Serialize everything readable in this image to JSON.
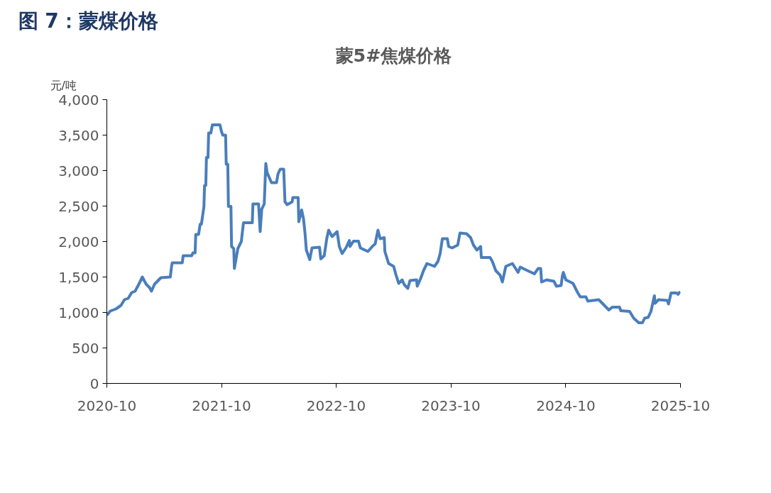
{
  "chart_data": {
    "type": "line",
    "title": "图 7：蒙煤价格",
    "subtitle": "蒙5#焦煤价格",
    "ylabel": "元/吨",
    "xlim": [
      "2020-10-01",
      "2025-10-01"
    ],
    "xticks": [
      "2020-10",
      "2021-10",
      "2022-10",
      "2023-10",
      "2024-10",
      "2025-10"
    ],
    "ylim": [
      0,
      4000
    ],
    "yticks": [
      0,
      500,
      {
        "value": 1000,
        "label": "1,000"
      },
      {
        "value": 1500,
        "label": "1,500"
      },
      {
        "value": 2000,
        "label": "2,000"
      },
      {
        "value": 2500,
        "label": "2,500"
      },
      {
        "value": 3000,
        "label": "3,000"
      },
      {
        "value": 3500,
        "label": "3,500"
      },
      {
        "value": 4000,
        "label": "4,000"
      }
    ],
    "grid": false,
    "marker": "none",
    "line_style": "solid",
    "series": [
      {
        "color": "#4a7ebb",
        "x": [
          "2020-10-01",
          "2020-10-12",
          "2020-10-30",
          "2020-11-15",
          "2020-11-26",
          "2020-12-08",
          "2020-12-19",
          "2020-12-30",
          "2021-01-11",
          "2021-01-22",
          "2021-02-03",
          "2021-02-14",
          "2021-02-20",
          "2021-03-02",
          "2021-03-22",
          "2021-04-21",
          "2021-04-25",
          "2021-04-27",
          "2021-05-29",
          "2021-06-01",
          "2021-06-28",
          "2021-07-02",
          "2021-07-09",
          "2021-07-11",
          "2021-07-20",
          "2021-07-25",
          "2021-07-29",
          "2021-08-06",
          "2021-08-08",
          "2021-08-12",
          "2021-08-14",
          "2021-08-19",
          "2021-08-21",
          "2021-08-28",
          "2021-09-02",
          "2021-09-26",
          "2021-10-01",
          "2021-10-05",
          "2021-10-14",
          "2021-10-16",
          "2021-10-21",
          "2021-10-23",
          "2021-10-31",
          "2021-11-02",
          "2021-11-09",
          "2021-11-11",
          "2021-11-15",
          "2021-11-22",
          "2021-12-03",
          "2021-12-10",
          "2022-01-07",
          "2022-01-09",
          "2022-01-27",
          "2022-02-01",
          "2022-02-06",
          "2022-02-14",
          "2022-02-19",
          "2022-02-23",
          "2022-03-09",
          "2022-03-25",
          "2022-03-30",
          "2022-04-06",
          "2022-04-17",
          "2022-04-21",
          "2022-04-28",
          "2022-05-14",
          "2022-05-16",
          "2022-06-02",
          "2022-06-04",
          "2022-06-13",
          "2022-06-19",
          "2022-06-24",
          "2022-06-28",
          "2022-07-09",
          "2022-07-16",
          "2022-08-09",
          "2022-08-13",
          "2022-08-24",
          "2022-09-01",
          "2022-09-07",
          "2022-09-18",
          "2022-10-04",
          "2022-10-11",
          "2022-10-20",
          "2022-11-01",
          "2022-11-12",
          "2022-11-14",
          "2022-11-25",
          "2022-12-11",
          "2022-12-17",
          "2023-01-10",
          "2023-01-26",
          "2023-02-02",
          "2023-02-11",
          "2023-02-18",
          "2023-03-03",
          "2023-03-05",
          "2023-03-17",
          "2023-04-02",
          "2023-04-09",
          "2023-04-18",
          "2023-04-29",
          "2023-05-06",
          "2023-05-17",
          "2023-05-24",
          "2023-06-14",
          "2023-06-16",
          "2023-06-27",
          "2023-07-06",
          "2023-07-17",
          "2023-08-10",
          "2023-08-21",
          "2023-08-28",
          "2023-09-04",
          "2023-09-20",
          "2023-09-24",
          "2023-10-05",
          "2023-10-23",
          "2023-10-30",
          "2023-11-20",
          "2023-12-03",
          "2023-12-12",
          "2023-12-23",
          "2024-01-04",
          "2024-01-06",
          "2024-02-03",
          "2024-02-10",
          "2024-02-21",
          "2024-03-06",
          "2024-03-13",
          "2024-03-24",
          "2024-04-14",
          "2024-05-02",
          "2024-05-09",
          "2024-06-01",
          "2024-06-23",
          "2024-07-05",
          "2024-07-13",
          "2024-07-16",
          "2024-08-01",
          "2024-08-24",
          "2024-09-01",
          "2024-09-16",
          "2024-09-20",
          "2024-09-23",
          "2024-10-01",
          "2024-10-24",
          "2024-11-07",
          "2024-11-16",
          "2024-12-04",
          "2024-12-10",
          "2025-01-14",
          "2025-01-25",
          "2025-02-15",
          "2025-02-26",
          "2025-03-21",
          "2025-03-25",
          "2025-04-22",
          "2025-05-05",
          "2025-05-21",
          "2025-06-02",
          "2025-06-09",
          "2025-06-20",
          "2025-06-29",
          "2025-07-10",
          "2025-07-12",
          "2025-07-23",
          "2025-08-20",
          "2025-08-24",
          "2025-09-01",
          "2025-09-19",
          "2025-09-23",
          "2025-09-30"
        ],
        "values": [
          960,
          1020,
          1050,
          1100,
          1180,
          1200,
          1280,
          1300,
          1400,
          1500,
          1400,
          1350,
          1300,
          1400,
          1490,
          1500,
          1650,
          1700,
          1700,
          1800,
          1800,
          1840,
          1840,
          2100,
          2100,
          2245,
          2245,
          2490,
          2790,
          2790,
          3185,
          3185,
          3530,
          3530,
          3645,
          3645,
          3550,
          3500,
          3500,
          3090,
          3090,
          2495,
          2495,
          1930,
          1900,
          1620,
          1720,
          1900,
          2000,
          2265,
          2265,
          2530,
          2530,
          2140,
          2455,
          2530,
          3100,
          2975,
          2830,
          2830,
          2955,
          3020,
          3020,
          2560,
          2520,
          2560,
          2620,
          2620,
          2280,
          2445,
          2320,
          2110,
          1880,
          1745,
          1910,
          1920,
          1755,
          1800,
          2040,
          2160,
          2070,
          2140,
          1930,
          1830,
          1910,
          2015,
          1930,
          2005,
          2005,
          1910,
          1860,
          1940,
          1965,
          2160,
          2040,
          2055,
          1860,
          1690,
          1650,
          1535,
          1410,
          1460,
          1390,
          1340,
          1450,
          1460,
          1370,
          1480,
          1590,
          1690,
          1650,
          1720,
          1830,
          2040,
          2040,
          1930,
          1910,
          1950,
          2120,
          2110,
          2055,
          1950,
          1880,
          1930,
          1775,
          1775,
          1720,
          1590,
          1525,
          1430,
          1650,
          1690,
          1565,
          1640,
          1590,
          1545,
          1620,
          1620,
          1430,
          1460,
          1440,
          1370,
          1380,
          1515,
          1565,
          1460,
          1410,
          1285,
          1220,
          1220,
          1160,
          1180,
          1130,
          1035,
          1075,
          1075,
          1025,
          1015,
          920,
          855,
          855,
          920,
          930,
          1015,
          1235,
          1130,
          1180,
          1170,
          1120,
          1275,
          1275,
          1255,
          1295
        ]
      }
    ]
  }
}
